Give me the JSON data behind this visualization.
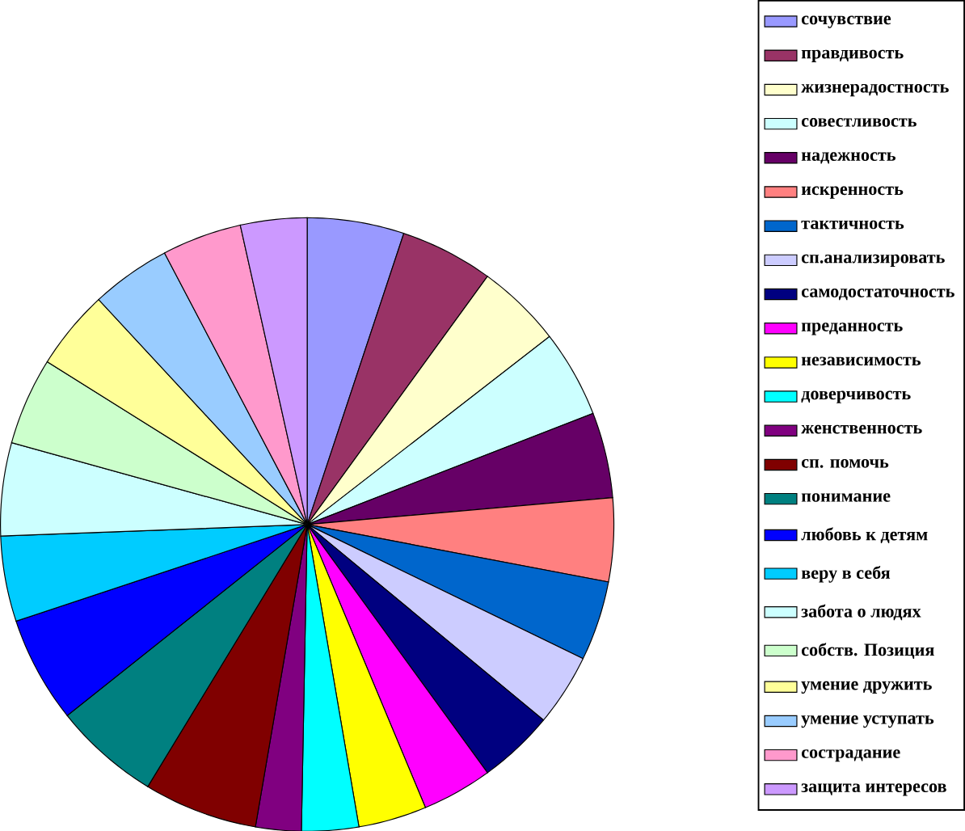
{
  "chart_data": {
    "type": "pie",
    "legend": "right",
    "categories": [
      "сочувствие",
      "правдивость",
      "жизнерадостность",
      "совестливость",
      "надежность",
      "искренность",
      "тактичность",
      "сп.анализировать",
      "самодостаточность",
      "преданность",
      "независимость",
      "доверчивость",
      "женственность",
      "сп. помочь",
      "понимание",
      "любовь к детям",
      "веру в себя",
      "забота о людях",
      "собств. Позиция",
      "умение дружить",
      "умение уступать",
      "сострадание",
      "защита интересов"
    ],
    "values": [
      5.1,
      4.9,
      4.5,
      4.6,
      4.5,
      4.4,
      4.2,
      3.8,
      4.0,
      3.7,
      3.6,
      3.0,
      2.4,
      6.0,
      5.6,
      5.6,
      4.5,
      4.9,
      4.6,
      4.2,
      4.2,
      4.2,
      3.5
    ],
    "colors": [
      "#9999ff",
      "#993366",
      "#ffffcc",
      "#ccffff",
      "#660066",
      "#ff8080",
      "#0066cc",
      "#ccccff",
      "#000080",
      "#ff00ff",
      "#ffff00",
      "#00ffff",
      "#800080",
      "#800000",
      "#008080",
      "#0000ff",
      "#00ccff",
      "#ccffff",
      "#ccffcc",
      "#ffff99",
      "#99ccff",
      "#ff99cc",
      "#cc99ff"
    ]
  }
}
